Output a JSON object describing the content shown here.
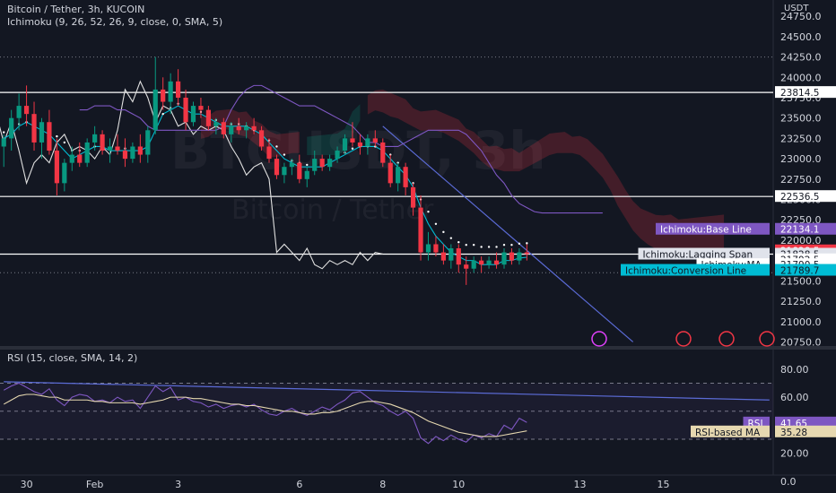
{
  "header": {
    "symbol": "Bitcoin / Tether, 3h, KUCOIN",
    "ichimoku": "Ichimoku (9, 26, 52, 26, 9, close, 0, SMA, 5)",
    "rsi": "RSI (15, close, SMA, 14, 2)"
  },
  "watermark": {
    "ticker": "BTCUSDT, 3h",
    "name": "Bitcoin / Tether"
  },
  "colors": {
    "background": "#131722",
    "up": "#089981",
    "down": "#f23645",
    "conversion": "#2962ff",
    "base": "#7e57c2",
    "lagging": "#e0e0e0",
    "rsi": "#7e57c2",
    "rsi_ma": "#e6d8b0",
    "cloud_red": "#f23645",
    "cloud_green": "#089981"
  },
  "chart_data": [
    {
      "type": "candlestick",
      "title": "Bitcoin / Tether, 3h, KUCOIN",
      "currency": "USDT",
      "ylim": [
        20700,
        24950
      ],
      "y_ticks": [
        "24750.0",
        "24500.0",
        "24250.0",
        "24000.0",
        "23750.0",
        "23500.0",
        "23250.0",
        "23000.0",
        "22750.0",
        "22500.0",
        "22250.0",
        "22000.0",
        "21750.0",
        "21500.0",
        "21250.0",
        "21000.0",
        "20750.0"
      ],
      "x_ticks": [
        {
          "label": "30",
          "i": 3
        },
        {
          "label": "Feb",
          "i": 12
        },
        {
          "label": "3",
          "i": 23
        },
        {
          "label": "6",
          "i": 39
        },
        {
          "label": "8",
          "i": 50
        },
        {
          "label": "10",
          "i": 60
        },
        {
          "label": "13",
          "i": 76
        },
        {
          "label": "15",
          "i": 87
        }
      ],
      "n_slots": 102,
      "ohlc": [
        [
          23150,
          23300,
          22900,
          23250
        ],
        [
          23250,
          23600,
          23100,
          23500
        ],
        [
          23500,
          23800,
          23350,
          23650
        ],
        [
          23650,
          23900,
          23400,
          23550
        ],
        [
          23550,
          23700,
          23100,
          23200
        ],
        [
          23200,
          23500,
          23000,
          23450
        ],
        [
          23450,
          23600,
          23050,
          23100
        ],
        [
          23100,
          23250,
          22550,
          22700
        ],
        [
          22700,
          23000,
          22600,
          22950
        ],
        [
          22950,
          23150,
          22850,
          23050
        ],
        [
          23050,
          23200,
          22900,
          22950
        ],
        [
          22950,
          23250,
          22900,
          23200
        ],
        [
          23200,
          23400,
          23100,
          23300
        ],
        [
          23300,
          23350,
          23050,
          23100
        ],
        [
          23100,
          23250,
          22950,
          23150
        ],
        [
          23150,
          23300,
          23050,
          23100
        ],
        [
          23100,
          23250,
          22900,
          23000
        ],
        [
          23000,
          23200,
          22950,
          23150
        ],
        [
          23150,
          23300,
          22950,
          23050
        ],
        [
          23050,
          23400,
          22950,
          23350
        ],
        [
          23350,
          24250,
          23300,
          23850
        ],
        [
          23850,
          24000,
          23600,
          23700
        ],
        [
          23700,
          24050,
          23550,
          23950
        ],
        [
          23950,
          24100,
          23650,
          23750
        ],
        [
          23750,
          23850,
          23350,
          23450
        ],
        [
          23450,
          23700,
          23400,
          23650
        ],
        [
          23650,
          23750,
          23500,
          23600
        ],
        [
          23600,
          23650,
          23350,
          23400
        ],
        [
          23400,
          23500,
          23300,
          23450
        ],
        [
          23450,
          23500,
          23250,
          23300
        ],
        [
          23300,
          23450,
          23200,
          23400
        ],
        [
          23400,
          23500,
          23300,
          23350
        ],
        [
          23350,
          23450,
          23250,
          23400
        ],
        [
          23400,
          23500,
          23300,
          23350
        ],
        [
          23350,
          23400,
          23100,
          23150
        ],
        [
          23150,
          23250,
          22950,
          23000
        ],
        [
          23000,
          23050,
          22750,
          22800
        ],
        [
          22800,
          22950,
          22700,
          22900
        ],
        [
          22900,
          23000,
          22800,
          22950
        ],
        [
          22950,
          23050,
          22700,
          22750
        ],
        [
          22750,
          22900,
          22650,
          22850
        ],
        [
          22850,
          23100,
          22800,
          23000
        ],
        [
          23000,
          23050,
          22850,
          22900
        ],
        [
          22900,
          23050,
          22850,
          23000
        ],
        [
          23000,
          23150,
          22950,
          23100
        ],
        [
          23100,
          23300,
          23050,
          23250
        ],
        [
          23250,
          23450,
          23150,
          23200
        ],
        [
          23200,
          23300,
          23050,
          23150
        ],
        [
          23150,
          23300,
          23050,
          23250
        ],
        [
          23250,
          23350,
          23150,
          23200
        ],
        [
          23200,
          23250,
          22900,
          22950
        ],
        [
          22950,
          23050,
          22650,
          22700
        ],
        [
          22700,
          22950,
          22600,
          22900
        ],
        [
          22900,
          22950,
          22550,
          22650
        ],
        [
          22650,
          22700,
          22300,
          22400
        ],
        [
          22400,
          22550,
          21750,
          21850
        ],
        [
          21850,
          22100,
          21750,
          21950
        ],
        [
          21950,
          22050,
          21800,
          21850
        ],
        [
          21850,
          21950,
          21700,
          21750
        ],
        [
          21750,
          21950,
          21650,
          21900
        ],
        [
          21900,
          21950,
          21600,
          21700
        ],
        [
          21700,
          21800,
          21450,
          21650
        ],
        [
          21650,
          21800,
          21600,
          21750
        ],
        [
          21750,
          21800,
          21600,
          21700
        ],
        [
          21700,
          21800,
          21650,
          21750
        ],
        [
          21750,
          21850,
          21650,
          21700
        ],
        [
          21700,
          21900,
          21650,
          21850
        ],
        [
          21850,
          21900,
          21700,
          21750
        ],
        [
          21750,
          21900,
          21700,
          21850
        ],
        [
          21850,
          21950,
          21750,
          21830
        ]
      ],
      "conversion_line": [
        23250,
        23300,
        23400,
        23450,
        23400,
        23350,
        23300,
        23200,
        23100,
        23000,
        23050,
        23100,
        23150,
        23150,
        23100,
        23100,
        23100,
        23100,
        23100,
        23150,
        23350,
        23550,
        23600,
        23650,
        23600,
        23550,
        23550,
        23500,
        23450,
        23400,
        23400,
        23400,
        23400,
        23350,
        23300,
        23200,
        23100,
        23000,
        22950,
        22900,
        22900,
        22900,
        22900,
        22950,
        23000,
        23050,
        23100,
        23150,
        23150,
        23150,
        23100,
        23000,
        22900,
        22800,
        22650,
        22400,
        22200,
        22050,
        21950,
        21850,
        21800,
        21750,
        21750,
        21700,
        21700,
        21700,
        21750,
        21750,
        21780,
        21790
      ],
      "base_line": [
        23400,
        23400,
        23450,
        23450,
        23450,
        23400,
        23400,
        23350,
        23300,
        23200,
        23150,
        23150,
        23150,
        23150,
        23150,
        23150,
        23150,
        23150,
        23150,
        23200,
        23400,
        23550,
        23650,
        23700,
        23700,
        23650,
        23600,
        23550,
        23500,
        23450,
        23450,
        23450,
        23400,
        23350,
        23300,
        23250,
        23200,
        23100,
        23000,
        23000,
        22950,
        22950,
        22950,
        23000,
        23050,
        23100,
        23150,
        23150,
        23150,
        23150,
        23150,
        23100,
        23000,
        22900,
        22750,
        22600,
        22500,
        22350,
        22250,
        22200,
        22150,
        22134,
        22134,
        22134,
        22134,
        22134,
        22134,
        22134,
        22134,
        22134
      ],
      "lagging_span": [
        23300,
        23650,
        23550,
        23200,
        23450,
        23100,
        22700,
        22950,
        23050,
        22950,
        23200,
        23300,
        23100,
        23150,
        23100,
        23000,
        23150,
        23050,
        23350,
        23850,
        23700,
        23950,
        23750,
        23450,
        23650,
        23600,
        23400,
        23450,
        23300,
        23400,
        23350,
        23400,
        23350,
        23150,
        23000,
        22800,
        22900,
        22950,
        22750,
        21850,
        21950,
        21850,
        21750,
        21900,
        21700,
        21650,
        21750,
        21700,
        21750,
        21700,
        21850,
        21750,
        21850,
        21830
      ],
      "kumo_shift": 26,
      "tags": [
        {
          "label": "Ichimoku:Base Line",
          "value": "22134.1",
          "y": 22134.1,
          "bg": "#7e57c2",
          "fg": "#ffffff"
        },
        {
          "label": "",
          "value": "21828.5",
          "y": 21870,
          "bg": "#f23645",
          "fg": "#ffffff",
          "sub": "01:41:16"
        },
        {
          "label": "Ichimoku:Lagging Span",
          "value": "21828.5",
          "y": 21828.5,
          "bg": "#e0e3eb",
          "fg": "#131722"
        },
        {
          "label": "",
          "value": "21792.5",
          "y": 21760,
          "bg": "#ffffff",
          "fg": "#131722"
        },
        {
          "label": "Ichimoku:MA",
          "value": "21790.5",
          "y": 21700,
          "bg": "#ffffff",
          "fg": "#131722"
        },
        {
          "label": "Ichimoku:Conversion Line",
          "value": "21789.7",
          "y": 21630,
          "bg": "#00bcd4",
          "fg": "#131722"
        },
        {
          "label": "",
          "value": "23814.5",
          "y": 23814.5,
          "bg": "#ffffff",
          "fg": "#131722"
        },
        {
          "label": "",
          "value": "22536.5",
          "y": 22536.5,
          "bg": "#ffffff",
          "fg": "#131722"
        }
      ],
      "hlines": [
        23814.5,
        22536.5,
        21828.5
      ],
      "dotted_lines": [
        24250,
        21600
      ],
      "trendline": {
        "from": [
          50,
          23400
        ],
        "to": [
          83,
          20750
        ]
      }
    },
    {
      "type": "line",
      "title": "RSI (15, close, SMA, 14, 2)",
      "ylim": [
        0,
        85
      ],
      "y_ticks": [
        "80.00",
        "60.00",
        "40.00",
        "20.00",
        "0.0"
      ],
      "bands": [
        70,
        50,
        30
      ],
      "series": [
        {
          "name": "RSI",
          "color": "#7e57c2",
          "values": [
            65,
            68,
            70,
            67,
            64,
            62,
            66,
            58,
            54,
            60,
            62,
            61,
            57,
            58,
            56,
            60,
            57,
            58,
            52,
            60,
            68,
            64,
            67,
            58,
            60,
            57,
            56,
            53,
            55,
            52,
            54,
            55,
            53,
            55,
            51,
            48,
            47,
            50,
            52,
            49,
            47,
            50,
            53,
            51,
            55,
            58,
            63,
            64,
            60,
            56,
            54,
            50,
            47,
            50,
            45,
            31,
            27,
            32,
            29,
            33,
            30,
            28,
            33,
            31,
            34,
            32,
            40,
            37,
            45,
            42
          ]
        },
        {
          "name": "RSI-based MA",
          "color": "#e6d8b0",
          "values": [
            55,
            58,
            61,
            62,
            62,
            61,
            60,
            60,
            58,
            58,
            58,
            58,
            57,
            57,
            56,
            56,
            56,
            56,
            55,
            56,
            57,
            58,
            60,
            60,
            60,
            59,
            59,
            58,
            57,
            56,
            55,
            55,
            54,
            54,
            53,
            52,
            51,
            50,
            50,
            49,
            48,
            48,
            49,
            49,
            50,
            52,
            54,
            56,
            57,
            57,
            56,
            55,
            53,
            51,
            49,
            46,
            43,
            41,
            39,
            37,
            35,
            34,
            33,
            32,
            32,
            32,
            33,
            34,
            35,
            36
          ]
        }
      ],
      "trendline": {
        "from": [
          0,
          71
        ],
        "to": [
          101,
          58
        ]
      },
      "tags": [
        {
          "label": "RSI",
          "value": "41.65",
          "y": 41.65,
          "bg": "#7e57c2",
          "fg": "#ffffff"
        },
        {
          "label": "RSI-based MA",
          "value": "35.28",
          "y": 35.28,
          "bg": "#e6d8b0",
          "fg": "#131722"
        }
      ]
    }
  ]
}
